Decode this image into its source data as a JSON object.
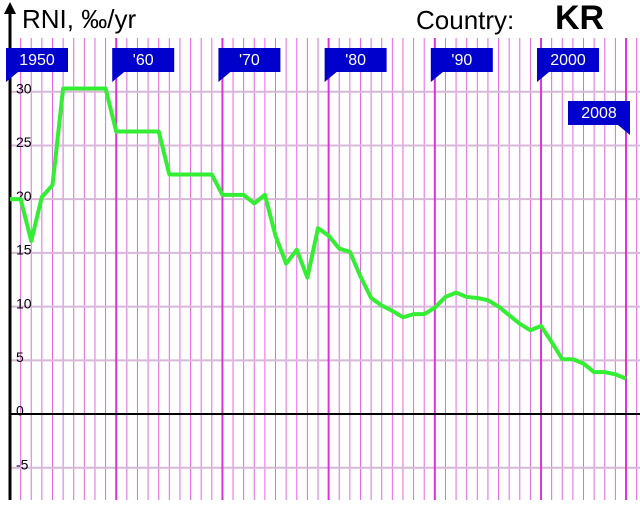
{
  "chart_data": {
    "type": "line",
    "title": "RNI, ‰/yr",
    "country_label": "Country:",
    "country": "KR",
    "x": [
      1950,
      1951,
      1952,
      1953,
      1954,
      1955,
      1956,
      1957,
      1958,
      1959,
      1960,
      1961,
      1962,
      1963,
      1964,
      1965,
      1966,
      1967,
      1968,
      1969,
      1970,
      1971,
      1972,
      1973,
      1974,
      1975,
      1976,
      1977,
      1978,
      1979,
      1980,
      1981,
      1982,
      1983,
      1984,
      1985,
      1986,
      1987,
      1988,
      1989,
      1990,
      1991,
      1992,
      1993,
      1994,
      1995,
      1996,
      1997,
      1998,
      1999,
      2000,
      2001,
      2002,
      2003,
      2004,
      2005,
      2006,
      2007,
      2008
    ],
    "values": [
      20,
      20,
      16.1,
      20.2,
      21.3,
      30.3,
      30.3,
      30.3,
      30.3,
      30.3,
      26.3,
      26.3,
      26.3,
      26.3,
      26.3,
      22.3,
      22.3,
      22.3,
      22.3,
      22.3,
      20.4,
      20.4,
      20.4,
      19.6,
      20.4,
      16.6,
      14,
      15.3,
      12.7,
      17.3,
      16.6,
      15.4,
      15.1,
      12.8,
      10.8,
      10.1,
      9.6,
      9.0,
      9.3,
      9.3,
      9.9,
      10.9,
      11.3,
      10.9,
      10.8,
      10.6,
      10.0,
      9.2,
      8.4,
      7.8,
      8.2,
      6.7,
      5.1,
      5.1,
      4.7,
      3.9,
      3.9,
      3.7,
      3.3
    ],
    "color": "#33ee33",
    "grid_color": "#dd33dd",
    "flag_color": "#0000cc",
    "xlim": [
      1950,
      2008
    ],
    "xticks": [
      {
        "value": 1950,
        "label": "1950"
      },
      {
        "value": 1960,
        "label": "'60"
      },
      {
        "value": 1970,
        "label": "'70"
      },
      {
        "value": 1980,
        "label": "'80"
      },
      {
        "value": 1990,
        "label": "'90"
      },
      {
        "value": 2000,
        "label": "2000"
      },
      {
        "value": 2008,
        "label": "2008"
      }
    ],
    "ylim": [
      -8,
      35
    ],
    "yticks": [
      30,
      25,
      20,
      15,
      10,
      5,
      0,
      -5
    ],
    "grid": true
  }
}
